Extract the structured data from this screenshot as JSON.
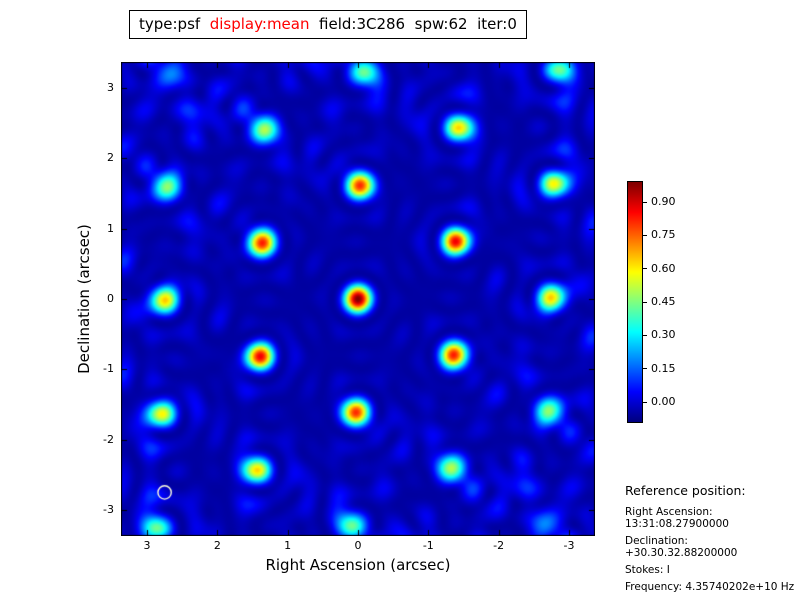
{
  "title": {
    "seg1": "type:psf  ",
    "seg2": "display:mean",
    "seg3": "  field:3C286  spw:62  iter:0",
    "highlight_color": "#ff0000"
  },
  "chart_data": {
    "type": "heatmap",
    "title": "type:psf display:mean field:3C286 spw:62 iter:0",
    "xlabel": "Right Ascension (arcsec)",
    "ylabel": "Declination (arcsec)",
    "x_range": [
      3.37,
      -3.37
    ],
    "y_range": [
      -3.37,
      3.37
    ],
    "x_ticks": [
      {
        "label": "3",
        "value": 3
      },
      {
        "label": "2",
        "value": 2
      },
      {
        "label": "1",
        "value": 1
      },
      {
        "label": "0",
        "value": 0
      },
      {
        "label": "-1",
        "value": -1
      },
      {
        "label": "-2",
        "value": -2
      },
      {
        "label": "-3",
        "value": -3
      }
    ],
    "y_ticks": [
      {
        "label": "3",
        "value": 3
      },
      {
        "label": "2",
        "value": 2
      },
      {
        "label": "1",
        "value": 1
      },
      {
        "label": "0",
        "value": 0
      },
      {
        "label": "-1",
        "value": -1
      },
      {
        "label": "-2",
        "value": -2
      },
      {
        "label": "-3",
        "value": -3
      }
    ],
    "colorbar": {
      "colormap": "jet",
      "vmin": -0.09,
      "vmax": 0.99,
      "ticks": [
        {
          "label": "0.90",
          "value": 0.9
        },
        {
          "label": "0.75",
          "value": 0.75
        },
        {
          "label": "0.60",
          "value": 0.6
        },
        {
          "label": "0.45",
          "value": 0.45
        },
        {
          "label": "0.30",
          "value": 0.3
        },
        {
          "label": "0.15",
          "value": 0.15
        },
        {
          "label": "0.00",
          "value": 0.0
        }
      ]
    },
    "peak": {
      "x": 0,
      "y": 0,
      "value": 1.0
    },
    "beam_marker": {
      "x": 2.75,
      "y": -2.75,
      "radius_arcsec": 0.095,
      "color": "#ffffdd"
    },
    "render": {
      "lattice_scale": 0.72,
      "jitter": 0.1,
      "lattice_radius": 2.07,
      "seed": 7
    }
  },
  "reference": {
    "header": "Reference position:",
    "ra": "Right Ascension: 13:31:08.27900000",
    "dec": "Declination: +30.30.32.88200000",
    "stokes": "Stokes: I",
    "freq": "Frequency: 4.35740202e+10 Hz"
  }
}
